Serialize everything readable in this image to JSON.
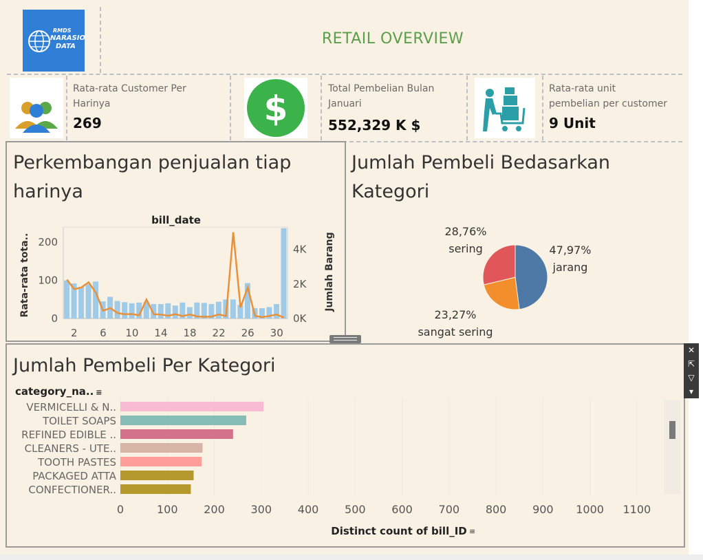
{
  "header": {
    "title": "RETAIL OVERVIEW",
    "logo": {
      "line1": "RMDS",
      "line2": "NARASIO",
      "line3": "DATA"
    }
  },
  "kpis": [
    {
      "label_line1": "Rata-rata Customer Per",
      "label_line2": "Harinya",
      "value": "269",
      "icon": "people-icon"
    },
    {
      "label_line1": "Total Pembelian Bulan",
      "label_line2": "Januari",
      "value": "552,329 K $",
      "icon": "dollar-icon"
    },
    {
      "label_line1": "Rata-rata unit",
      "label_line2": "pembelian per customer",
      "value": "9 Unit",
      "icon": "shopping-cart-icon"
    }
  ],
  "daily": {
    "title_line1": "Perkembangan penjualan tiap",
    "title_line2": "harinya",
    "top_label": "bill_date",
    "left_axis_label": "Rata-rata tota..",
    "right_axis_label": "Jumlah Barang",
    "left_ticks": [
      "0",
      "100",
      "200"
    ],
    "right_ticks": [
      "0K",
      "2K",
      "4K"
    ],
    "x_ticks": [
      "2",
      "6",
      "10",
      "14",
      "18",
      "22",
      "26",
      "30"
    ]
  },
  "pie": {
    "title_line1": "Jumlah Pembeli Bedasarkan",
    "title_line2": "Kategori",
    "slices": [
      {
        "pct": "47,97%",
        "name": "jarang",
        "value": 47.97,
        "color": "#4e79a7"
      },
      {
        "pct": "23,27%",
        "name": "sangat sering",
        "value": 23.27,
        "color": "#f28e2b"
      },
      {
        "pct": "28,76%",
        "name": "sering",
        "value": 28.76,
        "color": "#e15759"
      }
    ]
  },
  "category": {
    "title": "Jumlah Pembeli Per Kategori",
    "header": "category_na..",
    "xlabel": "Distinct count of bill_ID",
    "x_ticks": [
      "0",
      "100",
      "200",
      "300",
      "400",
      "500",
      "600",
      "700",
      "800",
      "900",
      "1000",
      "1100"
    ]
  },
  "chart_data": [
    {
      "type": "bar+line",
      "title": "Perkembangan penjualan tiap harinya",
      "xlabel": "bill_date",
      "ylabel": "Rata-rata tota..",
      "y2label": "Jumlah Barang",
      "x": [
        1,
        2,
        3,
        4,
        5,
        6,
        7,
        8,
        9,
        10,
        11,
        12,
        13,
        14,
        15,
        16,
        17,
        18,
        19,
        20,
        21,
        22,
        23,
        24,
        25,
        26,
        27,
        28,
        29,
        30,
        31
      ],
      "ylim": [
        0,
        240
      ],
      "y2lim": [
        0,
        5300
      ],
      "series": [
        {
          "name": "Rata-rata tota..",
          "axis": "left",
          "mark": "bar",
          "color": "#a0cbe8",
          "values": [
            100,
            92,
            83,
            90,
            97,
            45,
            57,
            46,
            43,
            40,
            42,
            43,
            38,
            38,
            40,
            34,
            42,
            30,
            42,
            41,
            38,
            44,
            50,
            50,
            36,
            93,
            27,
            27,
            30,
            38,
            237
          ]
        },
        {
          "name": "Jumlah Barang",
          "axis": "right",
          "mark": "line",
          "color": "#e8903a",
          "values": [
            2250,
            1700,
            1800,
            2100,
            1500,
            450,
            600,
            320,
            250,
            260,
            190,
            1100,
            250,
            230,
            160,
            250,
            140,
            240,
            120,
            100,
            110,
            240,
            140,
            5000,
            650,
            1800,
            150,
            80,
            150,
            230,
            50
          ]
        }
      ]
    },
    {
      "type": "pie",
      "title": "Jumlah Pembeli Bedasarkan Kategori",
      "categories": [
        "jarang",
        "sangat sering",
        "sering"
      ],
      "values": [
        47.97,
        23.27,
        28.76
      ]
    },
    {
      "type": "bar",
      "orientation": "horizontal",
      "title": "Jumlah Pembeli Per Kategori",
      "categories": [
        "VERMICELLI & N..",
        "TOILET SOAPS",
        "REFINED EDIBLE ..",
        "CLEANERS - UTE..",
        "TOOTH PASTES",
        "PACKAGED ATTA",
        "CONFECTIONER.."
      ],
      "values": [
        305,
        268,
        240,
        175,
        173,
        156,
        150
      ],
      "colors": [
        "#f9bbd3",
        "#86bcb6",
        "#d4728c",
        "#d7b5a6",
        "#ff9d9a",
        "#b6992d",
        "#b6992d"
      ],
      "xlabel": "Distinct count of bill_ID",
      "xlim": [
        0,
        1150
      ]
    }
  ]
}
